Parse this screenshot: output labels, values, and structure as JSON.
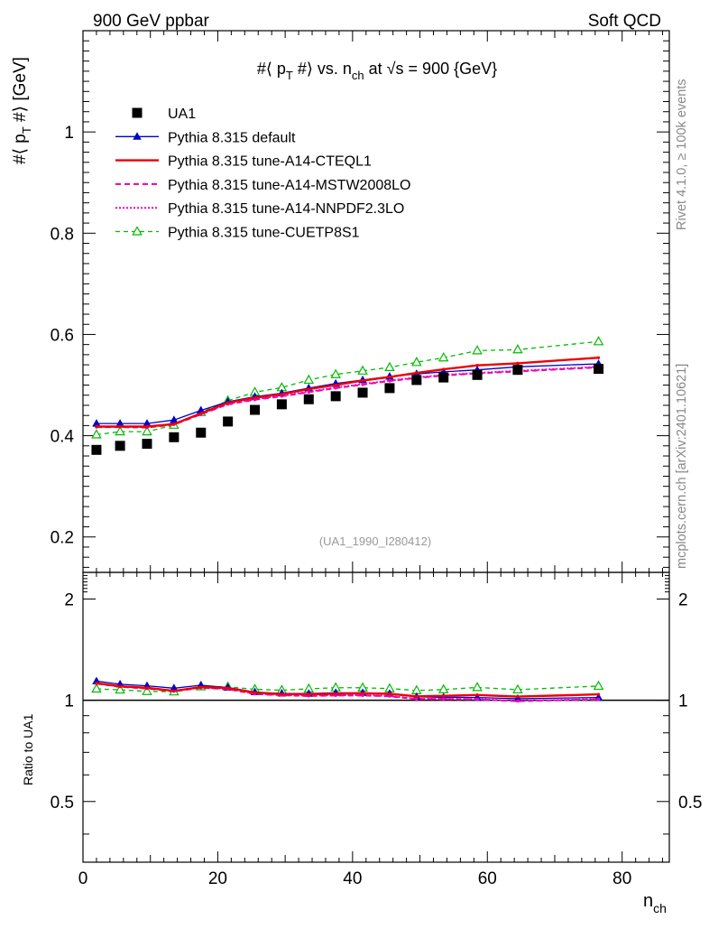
{
  "header": {
    "left": "900 GeV ppbar",
    "right": "Soft QCD"
  },
  "side_labels": {
    "top": "Rivet 4.1.0, ≥ 100k events",
    "bottom": "mcplots.cern.ch [arXiv:2401.10621]"
  },
  "colors": {
    "data": "#000000",
    "default": "#0000cc",
    "cteql1": "#ee0000",
    "mstw": "#ee0099",
    "nnpdf": "#ee00cc",
    "cuetp8s1": "#00bb00"
  },
  "chart_data": [
    {
      "type": "line",
      "title": "#⟨ p_T #⟩ vs. n_ch at √s = 900 {GeV}",
      "title_parts": {
        "a": "#⟨ p",
        "a_sub": "T",
        "b": " #⟩ vs. n",
        "b_sub": "ch",
        "c": " at ",
        "sqrt": "√",
        "d": "s = 900 {GeV}"
      },
      "ylabel_parts": {
        "a": "#⟨ p",
        "a_sub": "T",
        "b": " #⟩ [GeV]"
      },
      "xlabel": "n_ch",
      "xlim": [
        0,
        87
      ],
      "ylim": [
        0.13,
        1.2
      ],
      "yticks": [
        0.2,
        0.4,
        0.6,
        0.8,
        1
      ],
      "ytick_labels": [
        "0.2",
        "0.4",
        "0.6",
        "0.8",
        "1"
      ],
      "watermark": "(UA1_1990_I280412)",
      "x": [
        2,
        5.5,
        9.5,
        13.5,
        17.5,
        21.5,
        25.5,
        29.5,
        33.5,
        37.5,
        41.5,
        45.5,
        49.5,
        53.5,
        58.5,
        64.5,
        76.5
      ],
      "series": [
        {
          "name": "UA1",
          "key": "data",
          "style": "square",
          "values": [
            0.372,
            0.38,
            0.384,
            0.397,
            0.406,
            0.428,
            0.451,
            0.462,
            0.472,
            0.478,
            0.485,
            0.494,
            0.51,
            0.515,
            0.52,
            0.53,
            0.532
          ]
        },
        {
          "name": "Pythia 8.315 default",
          "key": "default",
          "style": "solid-triangle",
          "values": [
            0.424,
            0.424,
            0.424,
            0.431,
            0.45,
            0.467,
            0.477,
            0.484,
            0.494,
            0.503,
            0.51,
            0.517,
            0.522,
            0.526,
            0.53,
            0.536,
            0.542
          ]
        },
        {
          "name": "Pythia 8.315 tune-A14-CTEQL1",
          "key": "cteql1",
          "style": "solid-thick",
          "values": [
            0.418,
            0.418,
            0.418,
            0.423,
            0.444,
            0.465,
            0.475,
            0.482,
            0.492,
            0.5,
            0.509,
            0.516,
            0.524,
            0.531,
            0.539,
            0.543,
            0.554
          ]
        },
        {
          "name": "Pythia 8.315 tune-A14-MSTW2008LO",
          "key": "mstw",
          "style": "dashed",
          "values": [
            0.417,
            0.417,
            0.416,
            0.422,
            0.442,
            0.462,
            0.471,
            0.478,
            0.486,
            0.494,
            0.501,
            0.508,
            0.514,
            0.519,
            0.523,
            0.527,
            0.535
          ]
        },
        {
          "name": "Pythia 8.315 tune-A14-NNPDF2.3LO",
          "key": "nnpdf",
          "style": "dotted",
          "values": [
            0.418,
            0.418,
            0.417,
            0.423,
            0.443,
            0.463,
            0.472,
            0.479,
            0.487,
            0.495,
            0.502,
            0.509,
            0.515,
            0.52,
            0.524,
            0.528,
            0.536
          ]
        },
        {
          "name": "Pythia 8.315 tune-CUETP8S1",
          "key": "cuetp8s1",
          "style": "dashed-open-triangle",
          "values": [
            0.402,
            0.408,
            0.408,
            0.421,
            0.446,
            0.469,
            0.486,
            0.495,
            0.51,
            0.521,
            0.528,
            0.535,
            0.545,
            0.554,
            0.568,
            0.57,
            0.586
          ]
        }
      ]
    },
    {
      "type": "line",
      "title": "Ratio",
      "ylabel": "Ratio to UA1",
      "xlabel": "n_ch",
      "xlim": [
        0,
        87
      ],
      "ylim": [
        0.33,
        2.4
      ],
      "yticks": [
        0.5,
        1,
        2
      ],
      "ytick_labels": [
        "0.5",
        "1",
        "2"
      ],
      "xticks": [
        0,
        20,
        40,
        60,
        80
      ],
      "xtick_labels": [
        "0",
        "20",
        "40",
        "60",
        "80"
      ],
      "x": [
        2,
        5.5,
        9.5,
        13.5,
        17.5,
        21.5,
        25.5,
        29.5,
        33.5,
        37.5,
        41.5,
        45.5,
        49.5,
        53.5,
        58.5,
        64.5,
        76.5
      ],
      "series": [
        {
          "name": "Pythia 8.315 default",
          "key": "default",
          "style": "solid-triangle",
          "values": [
            1.14,
            1.116,
            1.104,
            1.086,
            1.108,
            1.091,
            1.058,
            1.048,
            1.047,
            1.052,
            1.052,
            1.047,
            1.024,
            1.021,
            1.019,
            1.011,
            1.019
          ]
        },
        {
          "name": "Pythia 8.315 tune-A14-CTEQL1",
          "key": "cteql1",
          "style": "solid-thick",
          "values": [
            1.124,
            1.1,
            1.089,
            1.066,
            1.094,
            1.087,
            1.053,
            1.043,
            1.042,
            1.046,
            1.049,
            1.045,
            1.027,
            1.031,
            1.037,
            1.025,
            1.041
          ]
        },
        {
          "name": "Pythia 8.315 tune-A14-MSTW2008LO",
          "key": "mstw",
          "style": "dashed",
          "values": [
            1.121,
            1.097,
            1.083,
            1.063,
            1.089,
            1.079,
            1.044,
            1.035,
            1.03,
            1.033,
            1.033,
            1.028,
            1.008,
            1.008,
            1.006,
            0.994,
            1.006
          ]
        },
        {
          "name": "Pythia 8.315 tune-A14-NNPDF2.3LO",
          "key": "nnpdf",
          "style": "dotted",
          "values": [
            1.124,
            1.1,
            1.086,
            1.066,
            1.091,
            1.082,
            1.047,
            1.037,
            1.032,
            1.036,
            1.035,
            1.03,
            1.01,
            1.01,
            1.008,
            0.996,
            1.008
          ]
        },
        {
          "name": "Pythia 8.315 tune-CUETP8S1",
          "key": "cuetp8s1",
          "style": "dashed-open-triangle",
          "values": [
            1.081,
            1.074,
            1.063,
            1.06,
            1.098,
            1.096,
            1.078,
            1.071,
            1.081,
            1.09,
            1.089,
            1.083,
            1.069,
            1.076,
            1.092,
            1.075,
            1.102
          ]
        }
      ]
    }
  ]
}
